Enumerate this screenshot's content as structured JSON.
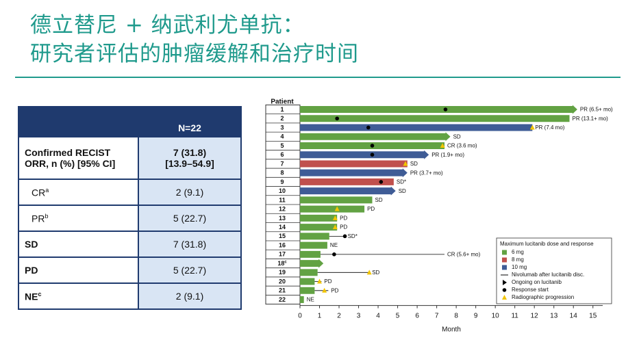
{
  "header": {
    "title": [
      "德立替尼 + 纳武利尤单抗：",
      "研究者评估的肿瘤缓解和治疗时间"
    ]
  },
  "table": {
    "header": "N=22",
    "rows": [
      {
        "label": [
          "Confirmed RECIST",
          "ORR, n (%) [95% CI]"
        ],
        "value": [
          "7 (31.8)",
          "[13.9–54.9]"
        ]
      },
      {
        "label": "CR",
        "note": "a",
        "value": "2 (9.1)"
      },
      {
        "label": "PR",
        "note": "b",
        "value": "5 (22.7)"
      },
      {
        "label": "SD",
        "value": "7 (31.8)"
      },
      {
        "label": "PD",
        "value": "5 (22.7)"
      },
      {
        "label": "NE",
        "note": "c",
        "value": "2 (9.1)"
      }
    ]
  },
  "chart_data": {
    "type": "swimmer",
    "y_label": "Patient",
    "x_label": "Month",
    "categories": [
      "1",
      "2",
      "3",
      "4",
      "5",
      "6",
      "7",
      "8",
      "9",
      "10",
      "11",
      "12",
      "13",
      "14",
      "15",
      "16",
      "17",
      "18",
      "19",
      "20",
      "21",
      "22"
    ],
    "category_notes": [
      null,
      null,
      null,
      null,
      null,
      null,
      null,
      null,
      null,
      null,
      null,
      null,
      null,
      null,
      null,
      null,
      null,
      "c",
      null,
      null,
      null,
      null
    ],
    "xlim": [
      0,
      15.5
    ],
    "xticks": [
      0,
      1,
      2,
      3,
      4,
      5,
      6,
      7,
      8,
      9,
      10,
      11,
      12,
      13,
      14,
      15
    ],
    "series": [
      {
        "name": "6 mg",
        "color": "#62a243",
        "values": [
          14.2,
          13.8,
          null,
          7.7,
          7.4,
          null,
          null,
          null,
          null,
          null,
          3.7,
          3.3,
          1.9,
          1.9,
          1.5,
          1.4,
          1.05,
          1.2,
          0.9,
          0.75,
          0.75,
          0.2
        ]
      },
      {
        "name": "8 mg",
        "color": "#c0504d",
        "values": [
          null,
          null,
          null,
          null,
          null,
          null,
          5.5,
          null,
          4.8,
          null,
          null,
          null,
          null,
          null,
          null,
          null,
          null,
          null,
          null,
          null,
          null,
          null
        ]
      },
      {
        "name": "10 mg",
        "color": "#3f5c96",
        "values": [
          null,
          null,
          11.9,
          null,
          null,
          6.6,
          null,
          5.5,
          null,
          4.9,
          null,
          null,
          null,
          null,
          null,
          null,
          null,
          null,
          null,
          null,
          null,
          null
        ]
      }
    ],
    "ongoing": {
      "name": "Ongoing on lucitanib",
      "values": [
        true,
        false,
        false,
        true,
        false,
        true,
        false,
        true,
        false,
        true,
        false,
        false,
        false,
        false,
        false,
        false,
        false,
        true,
        false,
        false,
        false,
        false
      ]
    },
    "nivolumab": {
      "name": "Nivolumab after lucitanib disc.",
      "values": [
        null,
        null,
        null,
        null,
        null,
        null,
        null,
        null,
        null,
        null,
        null,
        null,
        null,
        null,
        2.3,
        null,
        7.4,
        null,
        3.55,
        1.1,
        1.45,
        null
      ]
    },
    "response_start": {
      "name": "Response start",
      "color": "#000000",
      "values": [
        7.45,
        1.9,
        3.5,
        null,
        3.7,
        3.7,
        null,
        null,
        4.15,
        null,
        null,
        null,
        null,
        null,
        2.3,
        null,
        1.75,
        null,
        null,
        null,
        null,
        null
      ]
    },
    "progression": {
      "name": "Radiographic progression",
      "color": "#f2c500",
      "values": [
        null,
        null,
        11.9,
        null,
        7.3,
        null,
        5.4,
        null,
        null,
        null,
        null,
        1.9,
        1.8,
        1.8,
        null,
        null,
        null,
        null,
        3.55,
        1.0,
        1.25,
        null
      ]
    },
    "bar_labels": [
      "PR (6.5+ mo)",
      "PR (13.1+ mo)",
      "PR (7.4 mo)",
      "SD",
      "CR (3.6 mo)",
      "PR (1.9+ mo)",
      "SD",
      "PR (3.7+ mo)",
      "SD*",
      "SD",
      "SD",
      "PD",
      "PD",
      "PD",
      "SD*",
      "NE",
      "CR (5.6+ mo)",
      null,
      "SD",
      "PD",
      "PD",
      "NE"
    ],
    "legend_title": "Maximum lucitanib dose and response",
    "legend": "lower right"
  }
}
